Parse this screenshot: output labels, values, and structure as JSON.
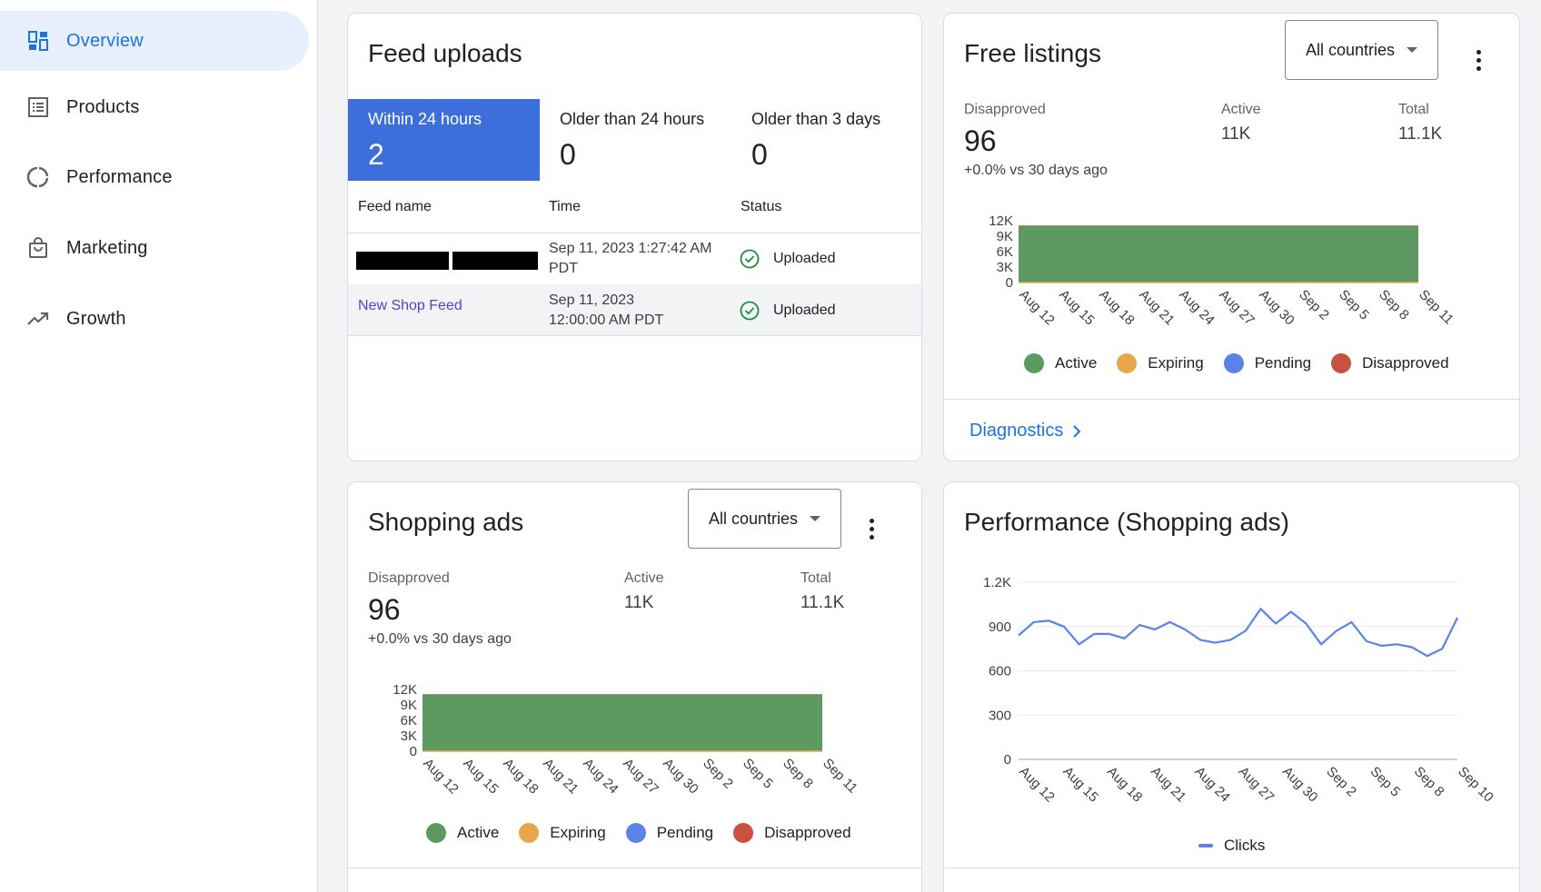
{
  "sidebar": {
    "items": [
      {
        "label": "Overview",
        "icon": "dashboard-icon",
        "active": true
      },
      {
        "label": "Products",
        "icon": "list-icon"
      },
      {
        "label": "Performance",
        "icon": "donut-icon"
      },
      {
        "label": "Marketing",
        "icon": "shopping-bag-icon"
      },
      {
        "label": "Growth",
        "icon": "trending-up-icon"
      }
    ]
  },
  "feed_uploads": {
    "title": "Feed uploads",
    "tabs": [
      {
        "label": "Within 24 hours",
        "value": "2"
      },
      {
        "label": "Older than 24 hours",
        "value": "0"
      },
      {
        "label": "Older than 3 days",
        "value": "0"
      }
    ],
    "columns": [
      "Feed name",
      "Time",
      "Status"
    ],
    "rows": [
      {
        "name": "",
        "redacted": true,
        "time_line1": "Sep 11, 2023 1:27:42 AM",
        "time_line2": "PDT",
        "status": "Uploaded"
      },
      {
        "name": "New Shop Feed",
        "time_line1": "Sep 11, 2023",
        "time_line2": "12:00:00 AM PDT",
        "status": "Uploaded"
      }
    ]
  },
  "free_listings": {
    "title": "Free listings",
    "dropdown": "All countries",
    "disapproved_label": "Disapproved",
    "disapproved_value": "96",
    "delta": "+0.0%  vs 30 days ago",
    "active_label": "Active",
    "active_value": "11K",
    "total_label": "Total",
    "total_value": "11.1K",
    "link": "Diagnostics"
  },
  "shopping_ads": {
    "title": "Shopping ads",
    "dropdown": "All countries",
    "disapproved_label": "Disapproved",
    "disapproved_value": "96",
    "delta": "+0.0%  vs 30 days ago",
    "active_label": "Active",
    "active_value": "11K",
    "total_label": "Total",
    "total_value": "11.1K"
  },
  "performance": {
    "title": "Performance (Shopping ads)"
  },
  "legend_colors": {
    "Active": "#5c9a62",
    "Expiring": "#e8a84a",
    "Pending": "#5b82e8",
    "Disapproved": "#c9513f"
  },
  "chart_data": [
    {
      "type": "area",
      "chart": "free-listings",
      "x": [
        "Aug 12",
        "Aug 15",
        "Aug 18",
        "Aug 21",
        "Aug 24",
        "Aug 27",
        "Aug 30",
        "Sep 2",
        "Sep 5",
        "Sep 8",
        "Sep 11"
      ],
      "yticks": [
        "12K",
        "9K",
        "6K",
        "3K",
        "0"
      ],
      "ylim": [
        0,
        12000
      ],
      "series": [
        {
          "name": "Active",
          "values": [
            11000,
            11000,
            11000,
            11000,
            11000,
            11000,
            11000,
            11000,
            11000,
            11000,
            11000
          ],
          "color": "#5c9a62"
        },
        {
          "name": "Expiring",
          "values": [
            0,
            0,
            0,
            0,
            0,
            0,
            0,
            0,
            0,
            0,
            0
          ],
          "color": "#e8a84a"
        },
        {
          "name": "Pending",
          "values": [
            0,
            0,
            0,
            0,
            0,
            0,
            0,
            0,
            0,
            0,
            0
          ],
          "color": "#5b82e8"
        },
        {
          "name": "Disapproved",
          "values": [
            96,
            96,
            96,
            96,
            96,
            96,
            96,
            96,
            96,
            96,
            96
          ],
          "color": "#c9513f"
        }
      ]
    },
    {
      "type": "area",
      "chart": "shopping-ads",
      "x": [
        "Aug 12",
        "Aug 15",
        "Aug 18",
        "Aug 21",
        "Aug 24",
        "Aug 27",
        "Aug 30",
        "Sep 2",
        "Sep 5",
        "Sep 8",
        "Sep 11"
      ],
      "yticks": [
        "12K",
        "9K",
        "6K",
        "3K",
        "0"
      ],
      "ylim": [
        0,
        12000
      ],
      "series": [
        {
          "name": "Active",
          "values": [
            11000,
            11000,
            11000,
            11000,
            11000,
            11000,
            11000,
            11000,
            11000,
            11000,
            11000
          ],
          "color": "#5c9a62"
        },
        {
          "name": "Expiring",
          "values": [
            0,
            0,
            0,
            0,
            0,
            0,
            0,
            0,
            0,
            0,
            0
          ],
          "color": "#e8a84a"
        },
        {
          "name": "Pending",
          "values": [
            0,
            0,
            0,
            0,
            0,
            0,
            0,
            0,
            0,
            0,
            0
          ],
          "color": "#5b82e8"
        },
        {
          "name": "Disapproved",
          "values": [
            96,
            96,
            96,
            96,
            96,
            96,
            96,
            96,
            96,
            96,
            96
          ],
          "color": "#c9513f"
        }
      ]
    },
    {
      "type": "line",
      "chart": "performance",
      "x_ticks": [
        "Aug 12",
        "Aug 15",
        "Aug 18",
        "Aug 21",
        "Aug 24",
        "Aug 27",
        "Aug 30",
        "Sep 2",
        "Sep 5",
        "Sep 8",
        "Sep 10"
      ],
      "yticks": [
        "1.2K",
        "900",
        "600",
        "300",
        "0"
      ],
      "ylim": [
        0,
        1200
      ],
      "series": [
        {
          "name": "Clicks",
          "color": "#5b82e8",
          "values": [
            840,
            930,
            940,
            900,
            780,
            850,
            850,
            820,
            910,
            880,
            930,
            880,
            810,
            790,
            810,
            870,
            1020,
            920,
            1000,
            920,
            780,
            870,
            930,
            800,
            770,
            780,
            760,
            700,
            750,
            960
          ]
        }
      ]
    }
  ]
}
